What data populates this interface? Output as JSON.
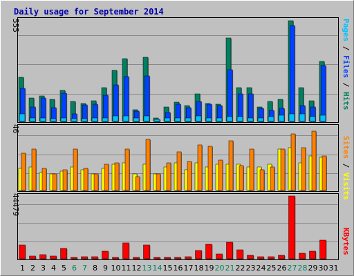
{
  "colors": {
    "background": "#C0C0C0",
    "title": "#0000AA",
    "pages": "#00C0FF",
    "files": "#0040FF",
    "hits": "#008060",
    "sites": "#FF8000",
    "visits": "#FFFF00",
    "kbytes": "#FF0000",
    "weekend_label": "#00805C",
    "gridline": "#8A8A8A"
  },
  "chart_data": {
    "title": "Daily usage for September 2014",
    "type": "bar",
    "categories": [
      "1",
      "2",
      "3",
      "4",
      "5",
      "6",
      "7",
      "8",
      "9",
      "10",
      "11",
      "12",
      "13",
      "14",
      "15",
      "16",
      "17",
      "18",
      "19",
      "20",
      "21",
      "22",
      "23",
      "24",
      "25",
      "26",
      "27",
      "28",
      "29",
      "30",
      "31"
    ],
    "weekend_days": [
      "6",
      "7",
      "13",
      "14",
      "20",
      "21",
      "27",
      "28"
    ],
    "panels": [
      {
        "ylim": [
          0,
          555
        ],
        "ymax_label": "555",
        "legend_labels": [
          "Pages",
          "Files",
          "Hits"
        ],
        "legend_separator": " / ",
        "series": [
          {
            "name": "Hits",
            "values": [
              240,
              130,
              140,
              120,
              170,
              110,
              100,
              115,
              185,
              280,
              345,
              65,
              350,
              20,
              80,
              105,
              85,
              150,
              100,
              95,
              455,
              185,
              185,
              80,
              110,
              120,
              550,
              185,
              115,
              330,
              0
            ]
          },
          {
            "name": "Files",
            "values": [
              180,
              80,
              130,
              75,
              155,
              40,
              90,
              95,
              145,
              200,
              245,
              55,
              250,
              10,
              50,
              95,
              75,
              110,
              95,
              85,
              285,
              150,
              150,
              70,
              60,
              70,
              525,
              85,
              80,
              305,
              0
            ]
          },
          {
            "name": "Pages",
            "values": [
              40,
              20,
              20,
              15,
              20,
              15,
              15,
              20,
              20,
              30,
              30,
              20,
              30,
              10,
              20,
              20,
              20,
              30,
              20,
              20,
              25,
              25,
              20,
              20,
              25,
              35,
              40,
              40,
              25,
              35,
              0
            ]
          }
        ]
      },
      {
        "ylim": [
          0,
          46
        ],
        "ymax_label": "46",
        "legend_labels": [
          "Sites",
          "Visits"
        ],
        "legend_separator": " / ",
        "series": [
          {
            "name": "Visits",
            "values": [
              16,
              17,
              13,
              12,
              14,
              17,
              15,
              12,
              16,
              19,
              20,
              12,
              19,
              12,
              17,
              20,
              15,
              20,
              17,
              19,
              19,
              19,
              17,
              17,
              19,
              30,
              31,
              20,
              25,
              24,
              0
            ]
          },
          {
            "name": "Sites",
            "values": [
              27,
              30,
              16,
              12,
              15,
              30,
              16,
              12,
              19,
              20,
              30,
              10,
              37,
              12,
              20,
              28,
              21,
              33,
              32,
              22,
              36,
              18,
              30,
              15,
              17,
              30,
              41,
              31,
              43,
              25,
              0
            ]
          }
        ]
      },
      {
        "ylim": [
          0,
          44479
        ],
        "ymax_label": "44479",
        "legend_labels": [
          "KBytes"
        ],
        "legend_separator": " / ",
        "series": [
          {
            "name": "KBytes",
            "values": [
              10000,
              1800,
              3100,
              2000,
              7500,
              1100,
              1700,
              1700,
              5200,
              1100,
              11300,
              850,
              10000,
              800,
              1100,
              1100,
              1400,
              5800,
              10500,
              3300,
              11500,
              6400,
              2200,
              1700,
              1600,
              2400,
              44479,
              3700,
              5500,
              13000,
              0
            ]
          }
        ]
      }
    ]
  }
}
